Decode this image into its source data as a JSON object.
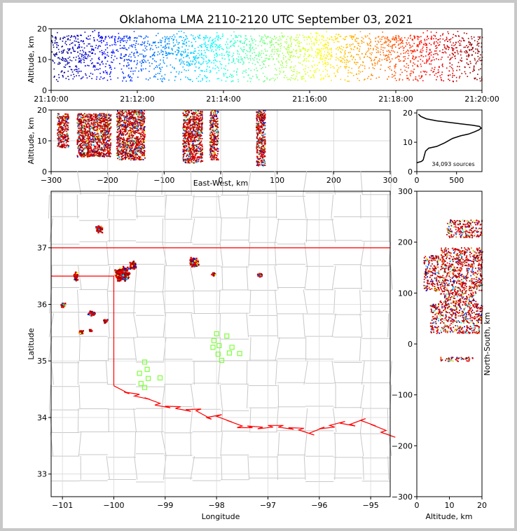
{
  "figure": {
    "title": "Oklahoma LMA 2110-2120 UTC September 03, 2021",
    "colormap": [
      "#00007f",
      "#0000ff",
      "#007fff",
      "#00ffff",
      "#7fff7f",
      "#ffff00",
      "#ff7f00",
      "#ff0000",
      "#7f0000"
    ],
    "grid_color": "#d9d9d9",
    "boundary_color": "#ff0000",
    "county_color": "#c8c8c8",
    "station_color": "#7fff3f"
  },
  "chart_data": [
    {
      "id": "time_height",
      "type": "scatter",
      "xlabel": "",
      "ylabel": "Altitude, km",
      "x_ticks": [
        "21:10:00",
        "21:12:00",
        "21:14:00",
        "21:16:00",
        "21:18:00",
        "21:20:00"
      ],
      "y_ticks": [
        0,
        10,
        20
      ],
      "xlim_minutes": [
        0,
        10
      ],
      "ylim": [
        0,
        20
      ],
      "color_by": "time",
      "density": {
        "altitude_core_km": [
          8,
          18
        ],
        "altitude_sparse_km": [
          3,
          8
        ]
      }
    },
    {
      "id": "ew_height",
      "type": "scatter",
      "xlabel": "East-West, km",
      "ylabel": "Altitude, km",
      "x_ticks": [
        -300,
        -200,
        -100,
        0,
        100,
        200,
        300
      ],
      "y_ticks": [
        0,
        10,
        20
      ],
      "xlim": [
        -300,
        300
      ],
      "ylim": [
        0,
        20
      ],
      "grid": true,
      "clusters": [
        {
          "x": [
            -290,
            -270
          ],
          "alt": [
            8,
            19
          ]
        },
        {
          "x": [
            -255,
            -195
          ],
          "alt": [
            5,
            19
          ]
        },
        {
          "x": [
            -185,
            -135
          ],
          "alt": [
            4,
            20
          ]
        },
        {
          "x": [
            -68,
            -33
          ],
          "alt": [
            3,
            20
          ]
        },
        {
          "x": [
            -20,
            -5
          ],
          "alt": [
            4,
            20
          ]
        },
        {
          "x": [
            62,
            78
          ],
          "alt": [
            2,
            20
          ]
        }
      ]
    },
    {
      "id": "altitude_histogram",
      "type": "line",
      "x_ticks": [
        0,
        500
      ],
      "y_ticks": [
        0,
        10,
        20
      ],
      "xlim": [
        0,
        820
      ],
      "ylim": [
        0,
        21
      ],
      "annotation": "34,093 sources",
      "profile": [
        [
          0,
          3
        ],
        [
          60,
          3.5
        ],
        [
          80,
          4
        ],
        [
          100,
          6
        ],
        [
          110,
          7
        ],
        [
          150,
          8
        ],
        [
          250,
          8.6
        ],
        [
          350,
          9.8
        ],
        [
          450,
          11.3
        ],
        [
          550,
          12.2
        ],
        [
          650,
          12.8
        ],
        [
          720,
          13.5
        ],
        [
          780,
          14.2
        ],
        [
          810,
          14.8
        ],
        [
          790,
          15.4
        ],
        [
          700,
          15.8
        ],
        [
          550,
          16.3
        ],
        [
          400,
          16.8
        ],
        [
          250,
          17.3
        ],
        [
          120,
          18
        ],
        [
          50,
          18.8
        ],
        [
          20,
          19.6
        ]
      ]
    },
    {
      "id": "plan_view",
      "type": "scatter",
      "xlabel": "Longitude",
      "ylabel": "Latitude",
      "x_ticks": [
        -101,
        -100,
        -99,
        -98,
        -97,
        -96,
        -95
      ],
      "y_ticks": [
        33,
        34,
        35,
        36,
        37
      ],
      "xlim": [
        -101.22,
        -94.62
      ],
      "ylim": [
        32.6,
        38.0
      ],
      "grid": true,
      "clusters": [
        {
          "lon": -100.3,
          "lat": 37.35,
          "spread": [
            0.08,
            0.08
          ],
          "n": 60
        },
        {
          "lon": -99.85,
          "lat": 36.55,
          "spread": [
            0.16,
            0.14
          ],
          "n": 500
        },
        {
          "lon": -99.65,
          "lat": 36.7,
          "spread": [
            0.08,
            0.08
          ],
          "n": 120
        },
        {
          "lon": -98.45,
          "lat": 36.75,
          "spread": [
            0.1,
            0.1
          ],
          "n": 200
        },
        {
          "lon": -98.07,
          "lat": 36.55,
          "spread": [
            0.04,
            0.04
          ],
          "n": 40
        },
        {
          "lon": -97.17,
          "lat": 36.53,
          "spread": [
            0.05,
            0.04
          ],
          "n": 40
        },
        {
          "lon": -100.75,
          "lat": 36.5,
          "spread": [
            0.05,
            0.1
          ],
          "n": 50
        },
        {
          "lon": -101.0,
          "lat": 36.0,
          "spread": [
            0.08,
            0.05
          ],
          "n": 40
        },
        {
          "lon": -100.45,
          "lat": 35.85,
          "spread": [
            0.08,
            0.05
          ],
          "n": 50
        },
        {
          "lon": -100.18,
          "lat": 35.72,
          "spread": [
            0.05,
            0.04
          ],
          "n": 30
        },
        {
          "lon": -100.65,
          "lat": 35.52,
          "spread": [
            0.05,
            0.04
          ],
          "n": 25
        },
        {
          "lon": -100.47,
          "lat": 35.55,
          "spread": [
            0.03,
            0.03
          ],
          "n": 12
        }
      ],
      "stations": [
        [
          -98.0,
          35.48
        ],
        [
          -97.8,
          35.44
        ],
        [
          -98.05,
          35.36
        ],
        [
          -97.95,
          35.27
        ],
        [
          -98.07,
          35.24
        ],
        [
          -97.7,
          35.24
        ],
        [
          -97.97,
          35.12
        ],
        [
          -97.75,
          35.14
        ],
        [
          -97.55,
          35.13
        ],
        [
          -97.9,
          35.01
        ],
        [
          -99.4,
          34.98
        ],
        [
          -99.35,
          34.85
        ],
        [
          -99.5,
          34.78
        ],
        [
          -99.33,
          34.69
        ],
        [
          -99.1,
          34.7
        ],
        [
          -99.47,
          34.6
        ],
        [
          -99.4,
          34.53
        ]
      ]
    },
    {
      "id": "ns_altitude",
      "type": "scatter",
      "xlabel": "Altitude, km",
      "ylabel": "North-South, km",
      "x_ticks": [
        0,
        10,
        20
      ],
      "y_ticks": [
        -300,
        -200,
        -100,
        0,
        100,
        200,
        300
      ],
      "xlim": [
        0,
        20
      ],
      "ylim": [
        -300,
        300
      ],
      "clusters": [
        {
          "ns": [
            210,
            245
          ],
          "alt": [
            9,
            20
          ]
        },
        {
          "ns": [
            175,
            190
          ],
          "alt": [
            7,
            20
          ]
        },
        {
          "ns": [
            105,
            175
          ],
          "alt": [
            2,
            20
          ]
        },
        {
          "ns": [
            80,
            105
          ],
          "alt": [
            7,
            18
          ]
        },
        {
          "ns": [
            40,
            80
          ],
          "alt": [
            4,
            20
          ]
        },
        {
          "ns": [
            22,
            38
          ],
          "alt": [
            4,
            19
          ]
        },
        {
          "ns": [
            -33,
            -25
          ],
          "alt": [
            7,
            17
          ]
        }
      ]
    }
  ]
}
